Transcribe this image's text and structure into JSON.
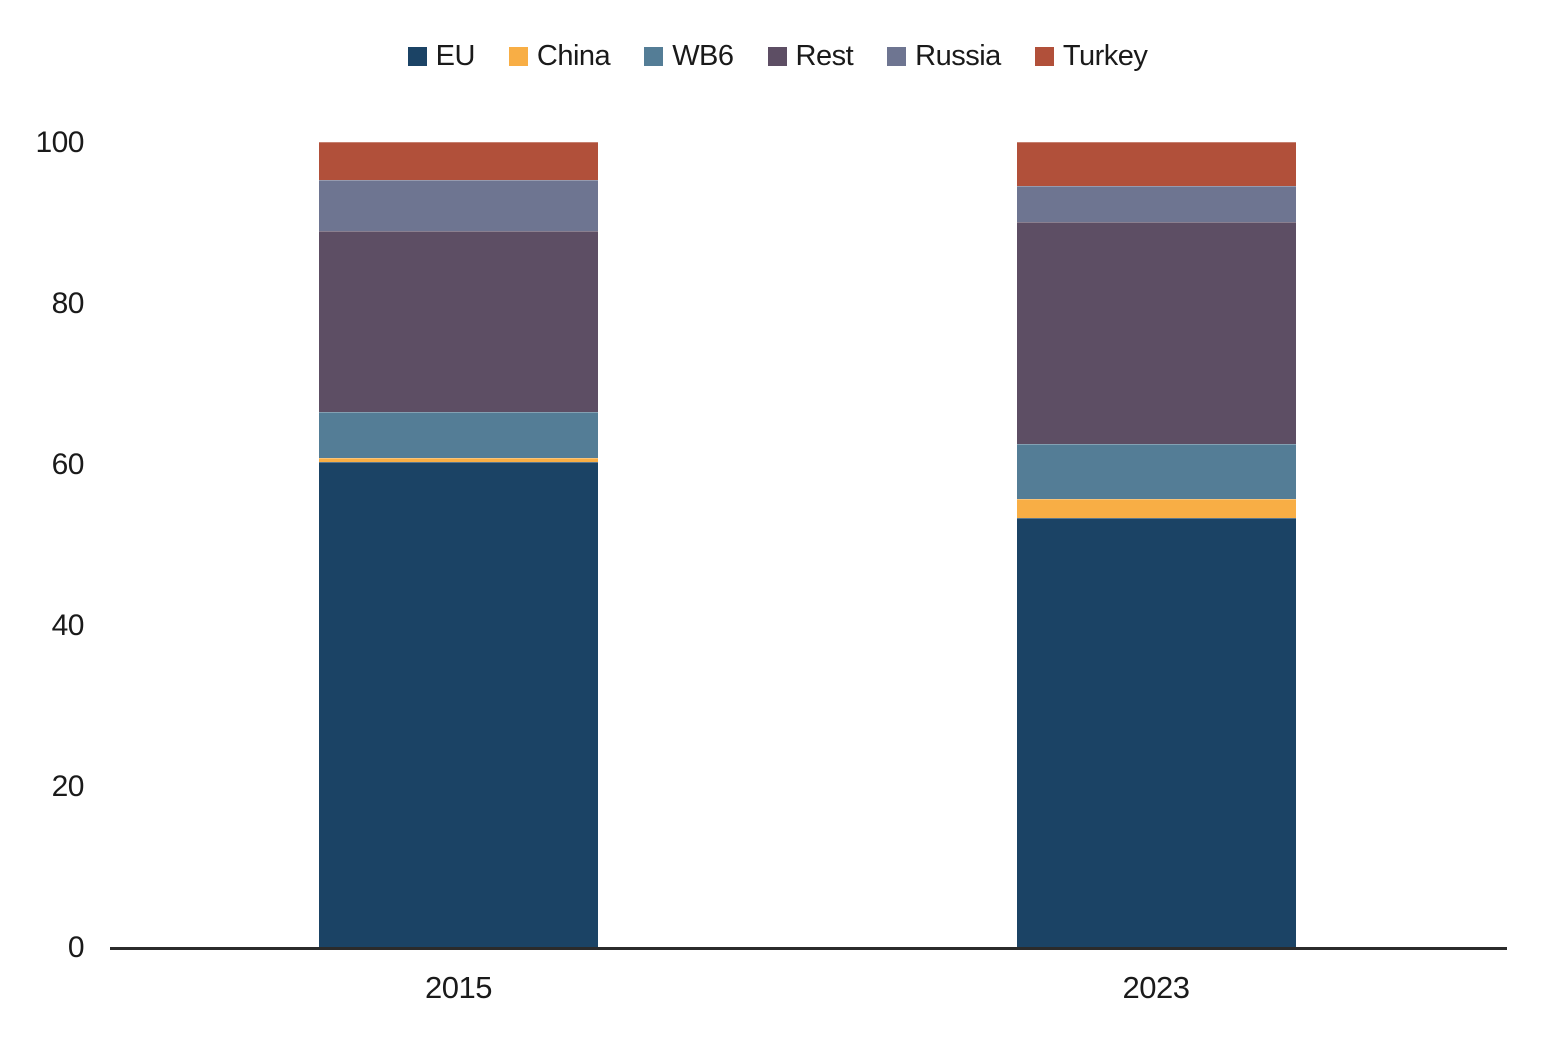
{
  "chart_data": {
    "type": "bar",
    "stacked": true,
    "title": "",
    "xlabel": "",
    "ylabel": "",
    "categories": [
      "2015",
      "2023"
    ],
    "series": [
      {
        "name": "EU",
        "color": "#1b4365",
        "values": [
          60.3,
          53.3
        ]
      },
      {
        "name": "China",
        "color": "#f8ae45",
        "values": [
          0.5,
          2.4
        ]
      },
      {
        "name": "WB6",
        "color": "#547d96",
        "values": [
          5.7,
          6.8
        ]
      },
      {
        "name": "Rest",
        "color": "#5d4e64",
        "values": [
          22.5,
          27.6
        ]
      },
      {
        "name": "Russia",
        "color": "#6e7591",
        "values": [
          6.3,
          4.5
        ]
      },
      {
        "name": "Turkey",
        "color": "#b1503a",
        "values": [
          4.7,
          5.4
        ]
      }
    ],
    "ylim": [
      0,
      100
    ],
    "yticks": [
      0,
      20,
      40,
      60,
      80,
      100
    ],
    "grid": false,
    "legend_position": "top",
    "axis_color": "#2b2b2b",
    "text_color": "#1a1a1a"
  }
}
